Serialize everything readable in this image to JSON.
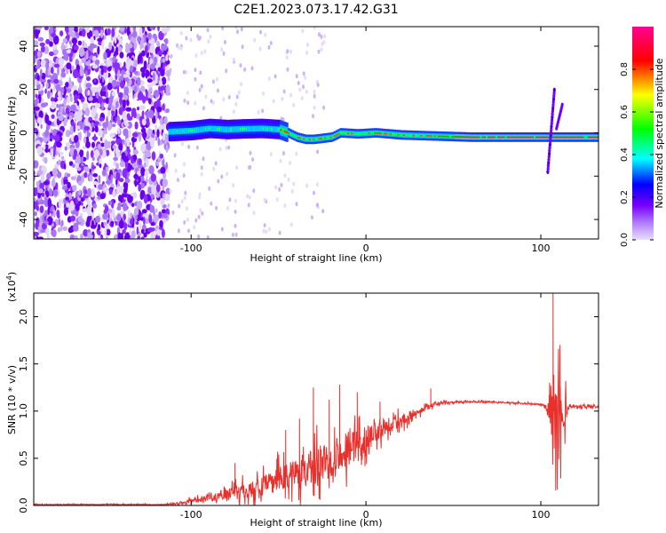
{
  "title": "C2E1.2023.073.17.42.G31",
  "chart_data": [
    {
      "type": "heatmap",
      "title": "C2E1.2023.073.17.42.G31",
      "xlabel": "Height of straight line (km)",
      "ylabel": "Frequency (Hz)",
      "xlim": [
        -190,
        133
      ],
      "ylim": [
        -49,
        49
      ],
      "xticks": [
        -100,
        0,
        100
      ],
      "xtick_labels": [
        "-100",
        "0",
        "100"
      ],
      "yticks": [
        -40,
        -20,
        0,
        20,
        40
      ],
      "ytick_labels": [
        "-40",
        "-20",
        "0",
        "20",
        "40"
      ],
      "colorbar": {
        "label": "Normalized spectral amplitude",
        "range": [
          0,
          1
        ],
        "ticks": [
          0.0,
          0.2,
          0.4,
          0.6,
          0.8
        ],
        "tick_labels": [
          "0.0",
          "0.2",
          "0.4",
          "0.6",
          "0.8"
        ],
        "colormap": [
          "#d8c8f2",
          "#7a00ff",
          "#0000ff",
          "#00ffff",
          "#00ff00",
          "#ffff00",
          "#ff0000",
          "#ff00a0"
        ]
      },
      "ridge": [
        {
          "x": -113,
          "y": 0.5
        },
        {
          "x": -100,
          "y": 1
        },
        {
          "x": -90,
          "y": 2
        },
        {
          "x": -80,
          "y": 1.5
        },
        {
          "x": -70,
          "y": 1.8
        },
        {
          "x": -60,
          "y": 2
        },
        {
          "x": -50,
          "y": 1.5
        },
        {
          "x": -45,
          "y": 0
        },
        {
          "x": -40,
          "y": -2
        },
        {
          "x": -35,
          "y": -3
        },
        {
          "x": -30,
          "y": -3
        },
        {
          "x": -20,
          "y": -2
        },
        {
          "x": -15,
          "y": 0
        },
        {
          "x": -5,
          "y": -0.5
        },
        {
          "x": 5,
          "y": 0
        },
        {
          "x": 20,
          "y": -1
        },
        {
          "x": 40,
          "y": -1.5
        },
        {
          "x": 60,
          "y": -2
        },
        {
          "x": 80,
          "y": -2
        },
        {
          "x": 100,
          "y": -2
        },
        {
          "x": 133,
          "y": -2
        }
      ]
    },
    {
      "type": "line",
      "xlabel": "Height of straight line (km)",
      "ylabel": "SNR (10 * v/v)",
      "y_scale_label": "(x10",
      "y_scale_exponent": "4",
      "y_scale_suffix": ")",
      "xlim": [
        -190,
        133
      ],
      "ylim": [
        0,
        2.25
      ],
      "xticks": [
        -100,
        0,
        100
      ],
      "xtick_labels": [
        "-100",
        "0",
        "100"
      ],
      "yticks": [
        0.0,
        0.5,
        1.0,
        1.5,
        2.0
      ],
      "ytick_labels": [
        "0.0",
        "0.5",
        "1.0",
        "1.5",
        "2.0"
      ],
      "series": [
        {
          "color": "#e8302c",
          "envelope": [
            {
              "x": -190,
              "base": 0.01,
              "spread": 0.01
            },
            {
              "x": -115,
              "base": 0.01,
              "spread": 0.01
            },
            {
              "x": -105,
              "base": 0.03,
              "spread": 0.04
            },
            {
              "x": -90,
              "base": 0.08,
              "spread": 0.08
            },
            {
              "x": -80,
              "base": 0.12,
              "spread": 0.12
            },
            {
              "x": -70,
              "base": 0.15,
              "spread": 0.2
            },
            {
              "x": -60,
              "base": 0.2,
              "spread": 0.2
            },
            {
              "x": -50,
              "base": 0.28,
              "spread": 0.3
            },
            {
              "x": -40,
              "base": 0.35,
              "spread": 0.35
            },
            {
              "x": -30,
              "base": 0.4,
              "spread": 0.45
            },
            {
              "x": -20,
              "base": 0.5,
              "spread": 0.45
            },
            {
              "x": -10,
              "base": 0.6,
              "spread": 0.4
            },
            {
              "x": 0,
              "base": 0.7,
              "spread": 0.3
            },
            {
              "x": 10,
              "base": 0.85,
              "spread": 0.25
            },
            {
              "x": 20,
              "base": 0.9,
              "spread": 0.15
            },
            {
              "x": 30,
              "base": 1.0,
              "spread": 0.08
            },
            {
              "x": 40,
              "base": 1.08,
              "spread": 0.04
            },
            {
              "x": 60,
              "base": 1.1,
              "spread": 0.02
            },
            {
              "x": 80,
              "base": 1.09,
              "spread": 0.02
            },
            {
              "x": 100,
              "base": 1.07,
              "spread": 0.02
            },
            {
              "x": 103,
              "base": 1.05,
              "spread": 0.05
            },
            {
              "x": 107,
              "base": 1.0,
              "spread": 1.0
            },
            {
              "x": 110,
              "base": 0.95,
              "spread": 0.9
            },
            {
              "x": 113,
              "base": 1.0,
              "spread": 0.5
            },
            {
              "x": 116,
              "base": 1.05,
              "spread": 0.05
            },
            {
              "x": 133,
              "base": 1.05,
              "spread": 0.02
            }
          ],
          "peaks": [
            {
              "x": -75,
              "y": 0.45
            },
            {
              "x": -46,
              "y": 0.8
            },
            {
              "x": -38,
              "y": 0.92
            },
            {
              "x": -30,
              "y": 1.25
            },
            {
              "x": -21,
              "y": 1.12
            },
            {
              "x": -15,
              "y": 1.28
            },
            {
              "x": -5,
              "y": 1.2
            },
            {
              "x": 8,
              "y": 1.1
            },
            {
              "x": 37,
              "y": 1.24
            },
            {
              "x": 105,
              "y": 1.3
            },
            {
              "x": 107,
              "y": 2.25
            },
            {
              "x": 111,
              "y": 1.7
            }
          ]
        }
      ]
    }
  ]
}
